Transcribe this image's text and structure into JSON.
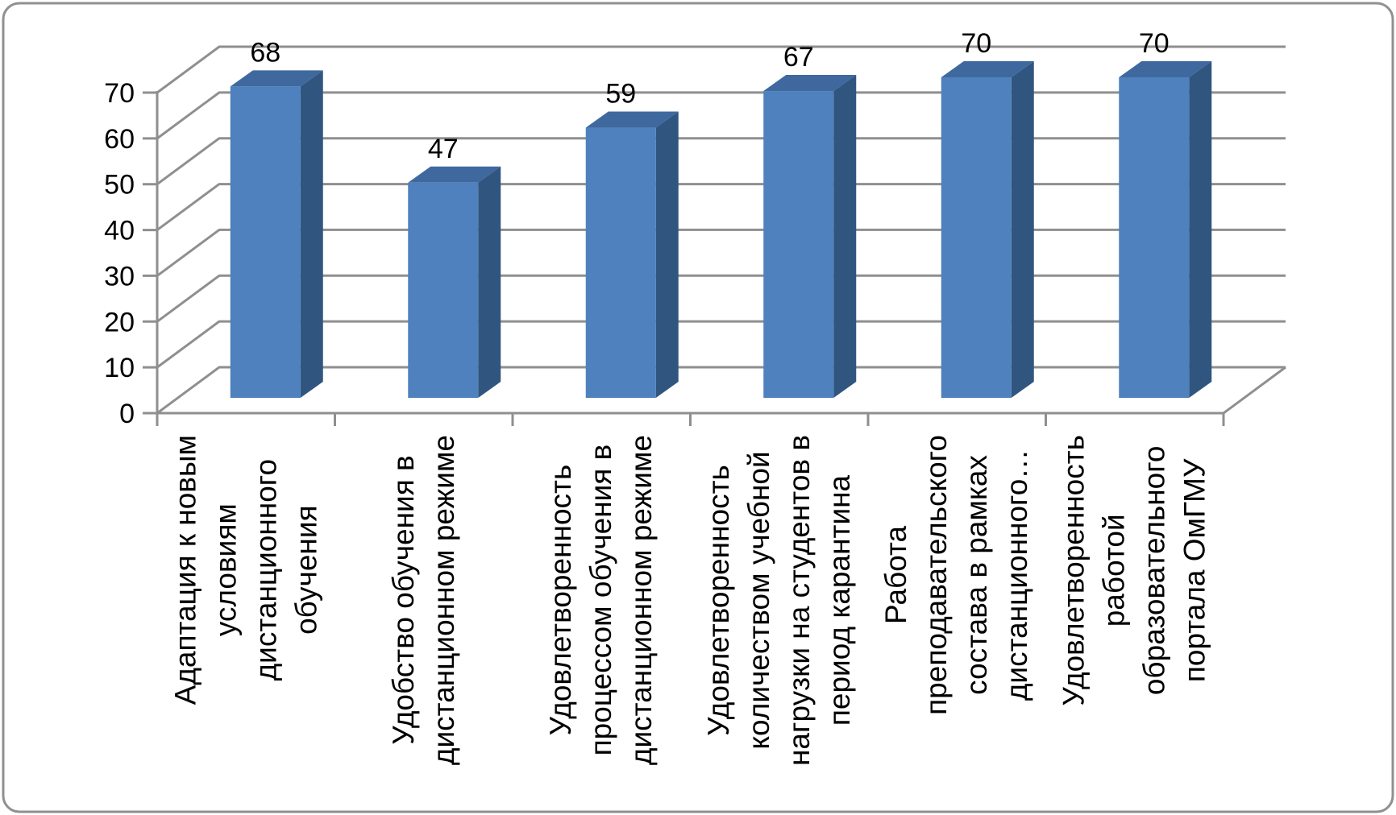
{
  "chart_data": {
    "type": "bar",
    "variant": "3d-column",
    "title": "",
    "xlabel": "",
    "ylabel": "",
    "categories": [
      "Адаптация к новым условиям дистанционного обучения",
      "Удобство обучения в дистанционном режиме",
      "Удовлетворенность процессом обучения в дистанционном режиме",
      "Удовлетворенность количеством учебной нагрузки на студентов в период карантина",
      "Работа преподавательского состава в рамках дистанционного…",
      "Удовлетворенность работой образовательного портала ОмГМУ"
    ],
    "category_lines": [
      [
        "Адаптация к новым",
        "условиям",
        "дистанционного",
        "обучения"
      ],
      [
        "Удобство обучения в",
        "дистанционном режиме"
      ],
      [
        "Удовлетворенность",
        "процессом обучения в",
        "дистанционном режиме"
      ],
      [
        "Удовлетворенность",
        "количеством учебной",
        "нагрузки на студентов в",
        "период карантина"
      ],
      [
        "Работа",
        "преподавательского",
        "состава в рамках",
        "дистанционного…"
      ],
      [
        "Удовлетворенность",
        "работой",
        "образовательного",
        "портала ОмГМУ"
      ]
    ],
    "values": [
      68,
      47,
      59,
      67,
      70,
      70
    ],
    "data_labels": [
      "68",
      "47",
      "59",
      "67",
      "70",
      "70"
    ],
    "ylim": [
      0,
      70
    ],
    "yticks": [
      0,
      10,
      20,
      30,
      40,
      50,
      60,
      70
    ],
    "ytick_labels": [
      "0",
      "10",
      "20",
      "30",
      "40",
      "50",
      "60",
      "70"
    ],
    "grid": true,
    "legend": false,
    "colors": {
      "bar_front": "#4E81BD",
      "bar_top": "#3F699E",
      "bar_side": "#305680",
      "gridline": "#8F8F8F",
      "axis": "#8F8F8F",
      "text": "#000000",
      "border": "#909090",
      "background": "#FFFFFF"
    }
  }
}
